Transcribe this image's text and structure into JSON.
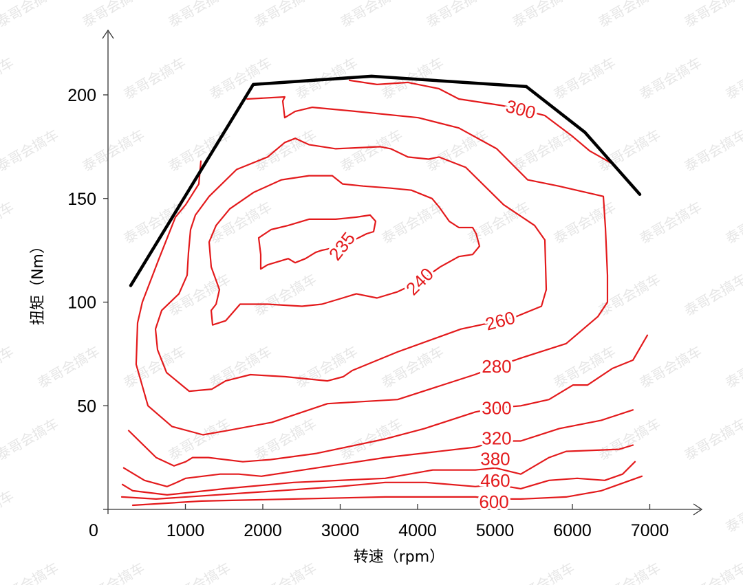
{
  "watermark": "泰哥会搞车",
  "chart_data": {
    "type": "line",
    "title": "",
    "xlabel": "转速（rpm）",
    "ylabel": "扭矩（Nm）",
    "xlim": [
      0,
      7500
    ],
    "ylim": [
      0,
      215
    ],
    "x_ticks": [
      0,
      1000,
      2000,
      3000,
      4000,
      5000,
      6000,
      7000
    ],
    "x_tick_labels": [
      "0",
      "1000",
      "2000",
      "3000",
      "4000",
      "5000",
      "6000",
      "7000"
    ],
    "y_ticks": [
      50,
      100,
      150,
      200
    ],
    "y_tick_labels": [
      "50",
      "100",
      "150",
      "200"
    ],
    "colors": {
      "contour": "#e31a1c",
      "full_load": "#000000"
    },
    "full_load_curve": [
      [
        293,
        108
      ],
      [
        1876,
        205
      ],
      [
        3404,
        209
      ],
      [
        5404,
        204
      ],
      [
        6160,
        182
      ],
      [
        6871,
        152
      ]
    ],
    "contours": [
      {
        "level": "235",
        "label": "235",
        "label_at": [
          3022,
          127
        ],
        "closed": true,
        "points": [
          [
            3022,
            127
          ],
          [
            2764,
            125
          ],
          [
            2684,
            124
          ],
          [
            2551,
            121
          ],
          [
            2418,
            119
          ],
          [
            2329,
            121
          ],
          [
            2062,
            118
          ],
          [
            1973,
            116
          ],
          [
            1973,
            123
          ],
          [
            1947,
            131
          ],
          [
            2107,
            135
          ],
          [
            2329,
            137
          ],
          [
            2596,
            140
          ],
          [
            2942,
            140
          ],
          [
            3209,
            141
          ],
          [
            3387,
            142
          ],
          [
            3458,
            139
          ],
          [
            3431,
            134
          ],
          [
            3342,
            133
          ],
          [
            3022,
            127
          ]
        ]
      },
      {
        "level": "240",
        "label": "240",
        "label_at": [
          4027,
          110
        ],
        "closed": true,
        "points": [
          [
            4027,
            110
          ],
          [
            4293,
            117
          ],
          [
            4533,
            122
          ],
          [
            4711,
            123
          ],
          [
            4800,
            127
          ],
          [
            4756,
            133
          ],
          [
            4711,
            136
          ],
          [
            4533,
            136
          ],
          [
            4409,
            139
          ],
          [
            4276,
            146
          ],
          [
            4187,
            150
          ],
          [
            3920,
            154
          ],
          [
            3653,
            155
          ],
          [
            3298,
            156
          ],
          [
            3031,
            157
          ],
          [
            2898,
            161
          ],
          [
            2596,
            161
          ],
          [
            2240,
            159
          ],
          [
            1884,
            153
          ],
          [
            1573,
            145
          ],
          [
            1396,
            137
          ],
          [
            1307,
            129
          ],
          [
            1333,
            117
          ],
          [
            1440,
            106
          ],
          [
            1396,
            99
          ],
          [
            1333,
            96
          ],
          [
            1351,
            89
          ],
          [
            1520,
            91
          ],
          [
            1707,
            99
          ],
          [
            2062,
            99
          ],
          [
            2507,
            98
          ],
          [
            2764,
            99
          ],
          [
            3031,
            102
          ],
          [
            3209,
            104
          ],
          [
            3476,
            102
          ],
          [
            3742,
            105
          ],
          [
            4027,
            110
          ]
        ]
      },
      {
        "level": "260",
        "label": "260",
        "label_at": [
          5067,
          91
        ],
        "closed": true,
        "points": [
          [
            5067,
            91
          ],
          [
            5271,
            93
          ],
          [
            5600,
            98
          ],
          [
            5662,
            106
          ],
          [
            5644,
            130
          ],
          [
            5511,
            137
          ],
          [
            5111,
            147
          ],
          [
            4622,
            165
          ],
          [
            4276,
            170
          ],
          [
            4142,
            169
          ],
          [
            3876,
            170
          ],
          [
            3653,
            174
          ],
          [
            3520,
            175
          ],
          [
            2942,
            174
          ],
          [
            2596,
            176
          ],
          [
            2418,
            179
          ],
          [
            2284,
            177
          ],
          [
            2062,
            170
          ],
          [
            1662,
            164
          ],
          [
            1307,
            151
          ],
          [
            1129,
            142
          ],
          [
            1067,
            135
          ],
          [
            1040,
            124
          ],
          [
            1022,
            113
          ],
          [
            916,
            104
          ],
          [
            693,
            96
          ],
          [
            613,
            87
          ],
          [
            640,
            77
          ],
          [
            756,
            66
          ],
          [
            1049,
            57
          ],
          [
            1342,
            58
          ],
          [
            1520,
            62
          ],
          [
            1840,
            65
          ],
          [
            2293,
            64
          ],
          [
            2836,
            62
          ],
          [
            3040,
            64
          ],
          [
            3156,
            67
          ],
          [
            3742,
            76
          ],
          [
            4560,
            87
          ],
          [
            5067,
            91
          ]
        ]
      },
      {
        "level": "280",
        "label": "280",
        "label_at": [
          5022,
          69
        ],
        "closed": false,
        "points": [
          [
            1796,
            198
          ],
          [
            2284,
            199
          ],
          [
            2258,
            197
          ],
          [
            2284,
            189
          ],
          [
            2418,
            192
          ],
          [
            2640,
            194
          ],
          [
            3209,
            192
          ],
          [
            4009,
            189
          ],
          [
            4533,
            184
          ],
          [
            5022,
            174
          ],
          [
            5422,
            159
          ],
          [
            5822,
            156
          ],
          [
            6400,
            151
          ],
          [
            6427,
            136
          ],
          [
            6453,
            113
          ],
          [
            6453,
            100
          ],
          [
            6329,
            93
          ],
          [
            5920,
            80
          ],
          [
            5333,
            73
          ],
          [
            5022,
            69
          ],
          [
            4738,
            65
          ],
          [
            3742,
            53
          ],
          [
            2836,
            51
          ],
          [
            2116,
            42
          ],
          [
            1538,
            38
          ],
          [
            1227,
            36
          ],
          [
            827,
            40
          ],
          [
            516,
            50
          ],
          [
            364,
            70
          ],
          [
            382,
            90
          ],
          [
            444,
            100
          ],
          [
            649,
            120
          ],
          [
            871,
            141
          ],
          [
            1004,
            147
          ],
          [
            1173,
            157
          ],
          [
            1200,
            168
          ]
        ]
      },
      {
        "level": "300",
        "label": "300",
        "label_at": [
          5333,
          193
        ],
        "closed": false,
        "points": [
          [
            3120,
            207
          ],
          [
            3476,
            205
          ],
          [
            3876,
            206
          ],
          [
            4276,
            203
          ],
          [
            4533,
            198
          ],
          [
            5067,
            195
          ],
          [
            5333,
            193
          ],
          [
            5644,
            190
          ],
          [
            6000,
            180
          ],
          [
            6222,
            173
          ],
          [
            6507,
            167
          ]
        ]
      },
      {
        "level": "300",
        "label": "300",
        "label_at": [
          5022,
          49
        ],
        "closed": false,
        "points": [
          [
            267,
            38
          ],
          [
            622,
            25
          ],
          [
            853,
            21
          ],
          [
            1004,
            23
          ],
          [
            1093,
            25
          ],
          [
            1298,
            25
          ],
          [
            1742,
            23
          ],
          [
            2098,
            24
          ],
          [
            2693,
            27
          ],
          [
            3582,
            34
          ],
          [
            4089,
            39
          ],
          [
            4747,
            47
          ],
          [
            5022,
            49
          ],
          [
            5333,
            50
          ],
          [
            5698,
            53
          ],
          [
            6009,
            60
          ],
          [
            6196,
            60
          ],
          [
            6516,
            68
          ],
          [
            6782,
            72
          ],
          [
            6969,
            84
          ]
        ]
      },
      {
        "level": "320",
        "label": "320",
        "label_at": [
          5022,
          33
        ],
        "closed": false,
        "points": [
          [
            204,
            20
          ],
          [
            471,
            14
          ],
          [
            764,
            11
          ],
          [
            889,
            13
          ],
          [
            1004,
            15
          ],
          [
            1449,
            17
          ],
          [
            1689,
            17
          ],
          [
            1982,
            16
          ],
          [
            2693,
            20
          ],
          [
            3582,
            25
          ],
          [
            4747,
            30
          ],
          [
            5022,
            33
          ],
          [
            5333,
            33
          ],
          [
            5831,
            39
          ],
          [
            6373,
            43
          ],
          [
            6782,
            48
          ]
        ]
      },
      {
        "level": "380",
        "label": "380",
        "label_at": [
          5004,
          20
        ],
        "closed": false,
        "points": [
          [
            187,
            12
          ],
          [
            320,
            9
          ],
          [
            764,
            7
          ],
          [
            1511,
            10
          ],
          [
            2400,
            13
          ],
          [
            3582,
            15
          ],
          [
            4196,
            19
          ],
          [
            4747,
            19
          ],
          [
            5004,
            20
          ],
          [
            5333,
            17
          ],
          [
            5698,
            25
          ],
          [
            5920,
            28
          ],
          [
            6604,
            29
          ],
          [
            6782,
            31
          ]
        ]
      },
      {
        "level": "460",
        "label": "460",
        "label_at": [
          5004,
          12
        ],
        "closed": false,
        "points": [
          [
            178,
            6
          ],
          [
            622,
            5
          ],
          [
            1804,
            8
          ],
          [
            2987,
            11
          ],
          [
            3582,
            13
          ],
          [
            4107,
            13
          ],
          [
            4747,
            11
          ],
          [
            5004,
            12
          ],
          [
            5333,
            10
          ],
          [
            5698,
            14
          ],
          [
            6062,
            15
          ],
          [
            6418,
            14
          ],
          [
            6649,
            17
          ],
          [
            6809,
            23
          ]
        ]
      },
      {
        "level": "600",
        "label": "600",
        "label_at": [
          4987,
          5
        ],
        "closed": false,
        "points": [
          [
            320,
            2
          ],
          [
            1209,
            4
          ],
          [
            2400,
            5
          ],
          [
            3582,
            6
          ],
          [
            4747,
            6
          ],
          [
            4987,
            5
          ],
          [
            5333,
            5
          ],
          [
            5920,
            6
          ],
          [
            6373,
            9
          ],
          [
            6898,
            16
          ]
        ]
      }
    ]
  }
}
